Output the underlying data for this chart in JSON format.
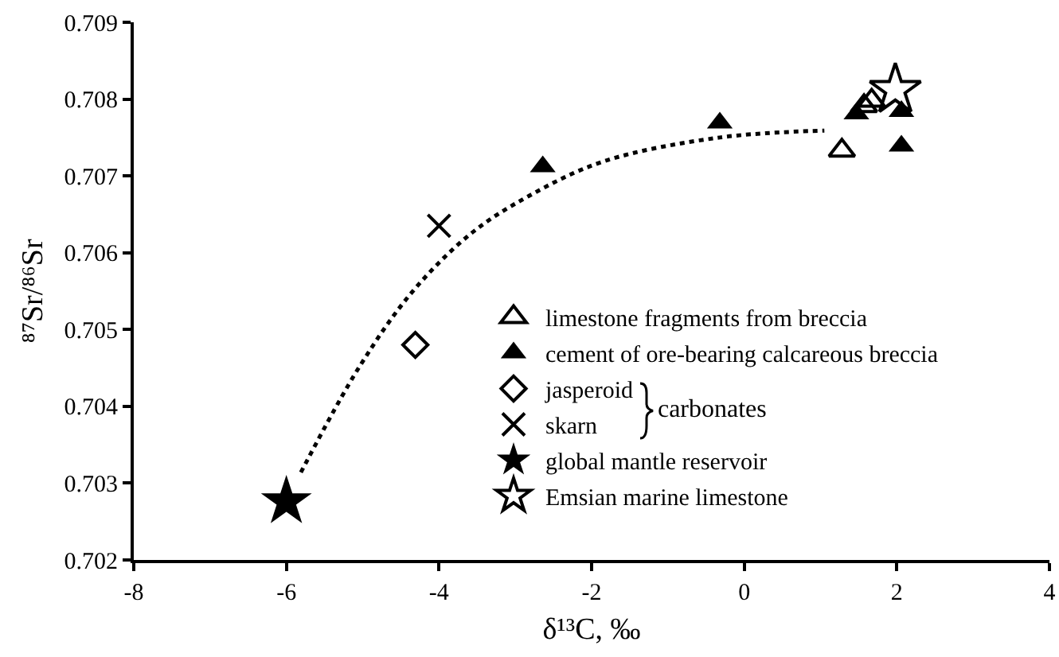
{
  "chart_data": {
    "type": "scatter",
    "xlabel": "δ¹³C, ‰",
    "ylabel": "⁸⁷Sr/⁸⁶Sr",
    "xlim": [
      -8,
      4
    ],
    "xticks": [
      -8,
      -6,
      -4,
      -2,
      0,
      2,
      4
    ],
    "ylim": [
      0.702,
      0.709
    ],
    "yticks": [
      0.702,
      0.703,
      0.704,
      0.705,
      0.706,
      0.707,
      0.708,
      0.709
    ],
    "grid": false,
    "legend": "bottom right",
    "annotations": [
      "carbonates"
    ],
    "series": [
      {
        "name": "limestone fragments from breccia",
        "color": "#000000",
        "marker": "triangle-open",
        "x": [
          1.28,
          1.57,
          1.67
        ],
        "values": [
          0.70733,
          0.70791,
          0.70798
        ]
      },
      {
        "name": "cement of ore-bearing calcareous breccia",
        "color": "#000000",
        "marker": "triangle",
        "x": [
          -2.64,
          -0.32,
          1.47,
          2.06,
          2.06
        ],
        "values": [
          0.70712,
          0.70769,
          0.70781,
          0.70784,
          0.70739
        ]
      },
      {
        "name": "jasperoid",
        "color": "#000000",
        "marker": "diamond-open",
        "x": [
          -4.31
        ],
        "values": [
          0.7048
        ]
      },
      {
        "name": "skarn",
        "color": "#000000",
        "marker": "cross",
        "x": [
          -4.0
        ],
        "values": [
          0.70635
        ]
      },
      {
        "name": "global mantle reservoir",
        "color": "#000000",
        "marker": "star",
        "x": [
          -6.0
        ],
        "values": [
          0.70276
        ]
      },
      {
        "name": "Emsian marine limestone",
        "color": "#000000",
        "marker": "star-open",
        "x": [
          1.98
        ],
        "values": [
          0.70812
        ]
      },
      {
        "type": "line",
        "color": "#000000",
        "line_style": "dotted",
        "marker": "none",
        "x": [
          -5.81,
          -5.04,
          -4.35,
          -3.58,
          -2.82,
          -1.84,
          -0.32,
          1.05
        ],
        "values": [
          0.70314,
          0.70452,
          0.70549,
          0.70625,
          0.70674,
          0.70719,
          0.7075,
          0.70759
        ]
      }
    ]
  }
}
